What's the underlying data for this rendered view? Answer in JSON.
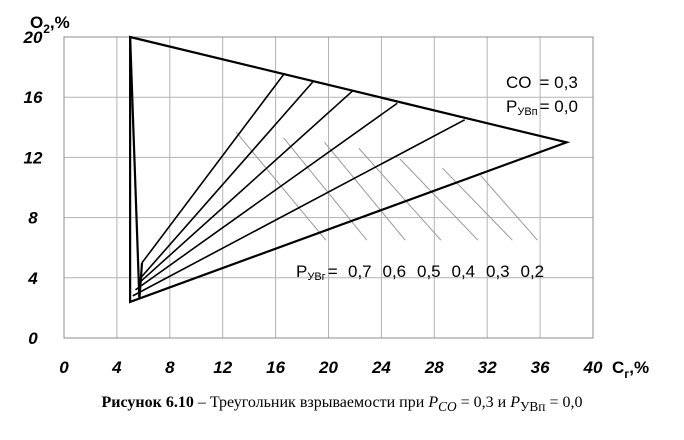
{
  "chart_data": {
    "type": "line",
    "title": "",
    "xlabel": "C",
    "xlabel_sub": "г",
    "xlabel_unit": ",%",
    "ylabel": "O",
    "ylabel_sub": "2",
    "ylabel_unit": ",%",
    "xlim": [
      0,
      40
    ],
    "ylim": [
      0,
      20
    ],
    "x_ticks": [
      "0",
      "4",
      "8",
      "12",
      "16",
      "20",
      "24",
      "28",
      "32",
      "36",
      "40"
    ],
    "y_ticks": [
      "0",
      "4",
      "8",
      "12",
      "16",
      "20"
    ],
    "grid": true,
    "outer_triangle": [
      [
        5.0,
        20.0
      ],
      [
        38.0,
        13.0
      ],
      [
        5.0,
        2.4
      ]
    ],
    "inner_boundary": [
      [
        5.0,
        20.0
      ],
      [
        5.7,
        2.6
      ],
      [
        5.9,
        5.0
      ]
    ],
    "rays": [
      {
        "label": "0,7",
        "from": [
          5.9,
          5.0
        ],
        "to": [
          16.6,
          17.5
        ]
      },
      {
        "label": "0,6",
        "from": [
          5.8,
          4.0
        ],
        "to": [
          18.8,
          17.0
        ]
      },
      {
        "label": "0,5",
        "from": [
          5.6,
          3.6
        ],
        "to": [
          21.8,
          16.4
        ]
      },
      {
        "label": "0,4",
        "from": [
          5.4,
          3.2
        ],
        "to": [
          25.2,
          15.6
        ]
      },
      {
        "label": "0,3",
        "from": [
          5.2,
          2.8
        ],
        "to": [
          30.3,
          14.5
        ]
      }
    ],
    "thin_lines": [
      {
        "from": [
          13.0,
          13.7
        ],
        "to": [
          19.8,
          6.5
        ]
      },
      {
        "from": [
          16.6,
          13.3
        ],
        "to": [
          22.9,
          6.5
        ]
      },
      {
        "from": [
          19.7,
          13.0
        ],
        "to": [
          25.8,
          6.5
        ]
      },
      {
        "from": [
          22.3,
          12.6
        ],
        "to": [
          28.5,
          6.5
        ]
      },
      {
        "from": [
          25.4,
          11.9
        ],
        "to": [
          31.3,
          6.5
        ]
      },
      {
        "from": [
          28.6,
          11.3
        ],
        "to": [
          33.9,
          6.5
        ]
      },
      {
        "from": [
          31.5,
          10.8
        ],
        "to": [
          35.8,
          6.5
        ]
      }
    ],
    "annotations": {
      "co_label": "CO",
      "co_value": "= 0,3",
      "pn_main": "P",
      "pn_sub": "УВп",
      "pn_value": "= 0,0",
      "pg_main": "P",
      "pg_sub": "УВг",
      "pg_eq": "=",
      "pg_values": [
        "0,7",
        "0,6",
        "0,5",
        "0,4",
        "0,3",
        "0,2"
      ]
    }
  },
  "caption": {
    "label": "Рисунок 6.10",
    "dash": " – ",
    "text": "Треугольник взрываемости при ",
    "p_co_main": "P",
    "p_co_sub": "CO",
    "p_co_value": " = 0,3",
    "and": " и ",
    "p_n_main": "P",
    "p_n_sub": "УВп",
    "p_n_value": " = 0,0"
  }
}
